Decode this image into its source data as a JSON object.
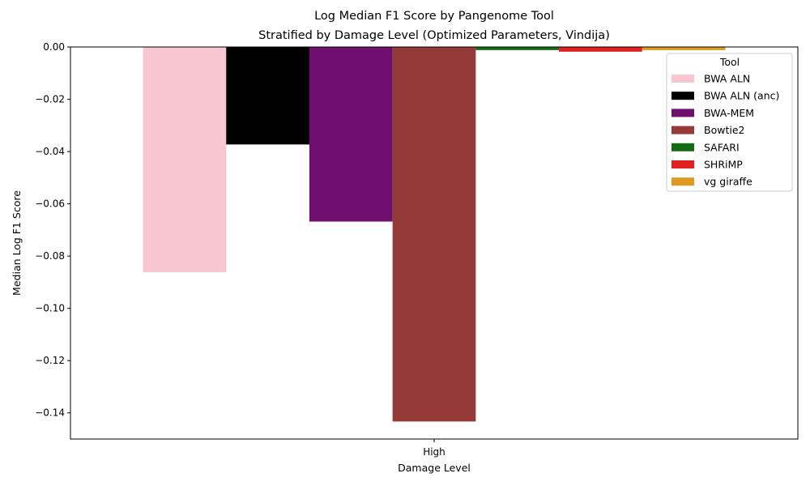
{
  "chart_data": {
    "type": "bar",
    "title_line1": "Log Median F1 Score by Pangenome Tool",
    "title_line2": "Stratified by Damage Level (Optimized Parameters, Vindija)",
    "xlabel": "Damage Level",
    "ylabel": "Median Log F1 Score",
    "categories": [
      "High"
    ],
    "ylim": [
      -0.15,
      0.0
    ],
    "yticks": [
      0.0,
      -0.02,
      -0.04,
      -0.06,
      -0.08,
      -0.1,
      -0.12,
      -0.14
    ],
    "ytick_labels": [
      "0.00",
      "−0.02",
      "−0.04",
      "−0.06",
      "−0.08",
      "−0.10",
      "−0.12",
      "−0.14"
    ],
    "grid": false,
    "legend": {
      "title": "Tool",
      "placement": "top-right"
    },
    "series": [
      {
        "name": "BWA ALN",
        "color": "#f7c6d0",
        "values": [
          -0.0862
        ]
      },
      {
        "name": "BWA ALN (anc)",
        "color": "#000000",
        "values": [
          -0.0373
        ]
      },
      {
        "name": "BWA-MEM",
        "color": "#6f1070",
        "values": [
          -0.0668
        ]
      },
      {
        "name": "Bowtie2",
        "color": "#943a38",
        "values": [
          -0.1433
        ]
      },
      {
        "name": "SAFARI",
        "color": "#156b14",
        "values": [
          -0.0012
        ]
      },
      {
        "name": "SHRiMP",
        "color": "#e0211f",
        "values": [
          -0.0018
        ]
      },
      {
        "name": "vg giraffe",
        "color": "#e09a20",
        "values": [
          -0.0012
        ]
      }
    ]
  }
}
